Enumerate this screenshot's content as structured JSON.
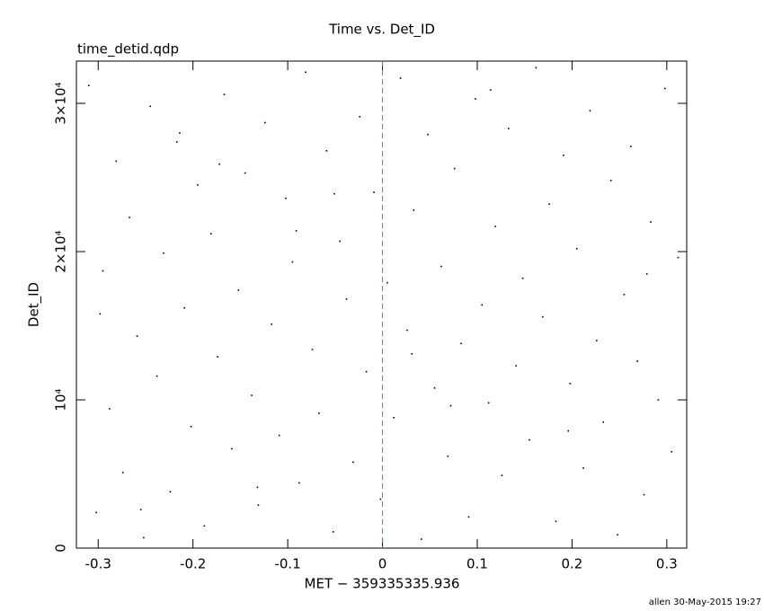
{
  "chart_data": {
    "type": "scatter",
    "title": "Time vs. Det_ID",
    "subtitle": "time_detid.qdp",
    "x_label": "MET − 359335335.936",
    "y_label": "Det_ID",
    "footer": "allen 30-May-2015 19:27",
    "color": "#000000",
    "vline": 0,
    "vline_color": "#3a8fa0",
    "xlim": [
      -0.323,
      0.321
    ],
    "ylim": [
      0,
      32850
    ],
    "xticks": [
      -0.3,
      -0.2,
      -0.1,
      0,
      0.1,
      0.2,
      0.3
    ],
    "yticks": [
      0,
      {
        "value": 10000,
        "label": "10⁴"
      },
      {
        "value": 20000,
        "label": "2×10⁴"
      },
      {
        "value": 30000,
        "label": "3×10⁴"
      }
    ],
    "x": [
      -0.31,
      -0.302,
      -0.295,
      -0.288,
      -0.281,
      -0.274,
      -0.267,
      -0.259,
      -0.252,
      -0.245,
      -0.238,
      -0.231,
      -0.224,
      -0.217,
      -0.209,
      -0.202,
      -0.195,
      -0.188,
      -0.181,
      -0.174,
      -0.167,
      -0.159,
      -0.152,
      -0.145,
      -0.138,
      -0.131,
      -0.124,
      -0.117,
      -0.109,
      -0.102,
      -0.095,
      -0.088,
      -0.081,
      -0.074,
      -0.067,
      -0.059,
      -0.052,
      -0.045,
      -0.038,
      -0.031,
      -0.024,
      -0.017,
      -0.009,
      -0.002,
      0.005,
      0.012,
      0.019,
      0.026,
      0.033,
      0.041,
      0.048,
      0.055,
      0.062,
      0.069,
      0.076,
      0.083,
      0.091,
      0.098,
      0.105,
      0.112,
      0.119,
      0.126,
      0.133,
      0.141,
      0.148,
      0.155,
      0.162,
      0.169,
      0.176,
      0.183,
      0.191,
      0.198,
      0.205,
      0.212,
      0.219,
      0.226,
      0.233,
      0.241,
      0.248,
      0.255,
      0.262,
      0.269,
      0.276,
      0.283,
      0.291,
      0.298,
      0.305,
      0.312,
      -0.298,
      -0.214,
      -0.132,
      -0.051,
      0.031,
      0.114,
      0.196,
      0.279,
      -0.255,
      -0.172,
      -0.091,
      0.072
    ],
    "values": [
      31200,
      2400,
      18700,
      9400,
      26100,
      5100,
      22300,
      14300,
      700,
      29800,
      11600,
      19900,
      3800,
      27400,
      16200,
      8200,
      24500,
      1500,
      21200,
      12900,
      30600,
      6700,
      17400,
      25300,
      10300,
      2900,
      28700,
      15100,
      7600,
      23600,
      19300,
      4400,
      32100,
      13400,
      9100,
      26800,
      1100,
      20700,
      16800,
      5800,
      29100,
      11900,
      24000,
      3300,
      17900,
      8800,
      31700,
      14700,
      22800,
      600,
      27900,
      10800,
      19000,
      6200,
      25600,
      13800,
      2100,
      30300,
      16400,
      9800,
      21700,
      4900,
      28300,
      12300,
      18200,
      7300,
      32400,
      15600,
      23200,
      1800,
      26500,
      11100,
      20200,
      5400,
      29500,
      14000,
      8500,
      24800,
      900,
      17100,
      27100,
      12600,
      3600,
      22000,
      10000,
      31000,
      6500,
      19600,
      15800,
      28000,
      4100,
      23900,
      13100,
      30900,
      7900,
      18500,
      2600,
      25900,
      21400,
      9600
    ],
    "grid": false
  }
}
